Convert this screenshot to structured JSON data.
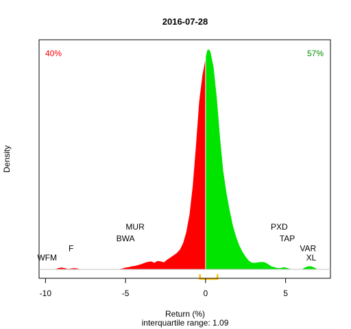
{
  "chart_data": {
    "type": "area",
    "title": "2016-07-28",
    "xlabel": "Return (%)",
    "ylabel": "Density",
    "subtitle": "interquartile range: 1.09",
    "xlim": [
      -10.4,
      7.8
    ],
    "ylim": [
      0,
      1.0
    ],
    "x_ticks": [
      -10,
      -5,
      0,
      5
    ],
    "x_tick_labels": [
      "-10",
      "-5",
      "0",
      "5"
    ],
    "negative_share": "40%",
    "positive_share": "57%",
    "colors": {
      "negative": "#ff0000",
      "positive": "#00e400",
      "iqr": "#ffc000",
      "baseline": "#c0c0c0"
    },
    "iqr": [
      -0.35,
      0.74
    ],
    "density": [
      [
        -9.4,
        0
      ],
      [
        -9.2,
        0.006
      ],
      [
        -9.0,
        0.008
      ],
      [
        -8.8,
        0.006
      ],
      [
        -8.6,
        0.002
      ],
      [
        -8.4,
        0.004
      ],
      [
        -8.2,
        0.006
      ],
      [
        -8.0,
        0.004
      ],
      [
        -7.8,
        0
      ],
      [
        -5.5,
        0
      ],
      [
        -5.2,
        0.004
      ],
      [
        -5.0,
        0.008
      ],
      [
        -4.8,
        0.01
      ],
      [
        -4.6,
        0.014
      ],
      [
        -4.4,
        0.016
      ],
      [
        -4.2,
        0.02
      ],
      [
        -4.0,
        0.024
      ],
      [
        -3.8,
        0.03
      ],
      [
        -3.6,
        0.034
      ],
      [
        -3.4,
        0.036
      ],
      [
        -3.2,
        0.03
      ],
      [
        -3.0,
        0.038
      ],
      [
        -2.8,
        0.036
      ],
      [
        -2.6,
        0.032
      ],
      [
        -2.4,
        0.044
      ],
      [
        -2.2,
        0.054
      ],
      [
        -2.0,
        0.064
      ],
      [
        -1.8,
        0.074
      ],
      [
        -1.6,
        0.09
      ],
      [
        -1.4,
        0.12
      ],
      [
        -1.2,
        0.17
      ],
      [
        -1.0,
        0.25
      ],
      [
        -0.8,
        0.38
      ],
      [
        -0.6,
        0.56
      ],
      [
        -0.4,
        0.76
      ],
      [
        -0.2,
        0.88
      ],
      [
        0.0,
        0.96
      ],
      [
        0.1,
        0.995
      ],
      [
        0.2,
        1.0
      ],
      [
        0.3,
        0.99
      ],
      [
        0.5,
        0.92
      ],
      [
        0.7,
        0.78
      ],
      [
        0.9,
        0.6
      ],
      [
        1.1,
        0.45
      ],
      [
        1.3,
        0.35
      ],
      [
        1.5,
        0.27
      ],
      [
        1.7,
        0.2
      ],
      [
        1.9,
        0.15
      ],
      [
        2.1,
        0.11
      ],
      [
        2.3,
        0.08
      ],
      [
        2.5,
        0.058
      ],
      [
        2.7,
        0.04
      ],
      [
        2.9,
        0.03
      ],
      [
        3.1,
        0.03
      ],
      [
        3.3,
        0.032
      ],
      [
        3.5,
        0.034
      ],
      [
        3.7,
        0.032
      ],
      [
        3.9,
        0.024
      ],
      [
        4.1,
        0.014
      ],
      [
        4.3,
        0.01
      ],
      [
        4.5,
        0.006
      ],
      [
        4.7,
        0.006
      ],
      [
        4.9,
        0.01
      ],
      [
        5.1,
        0.006
      ],
      [
        5.3,
        0.002
      ],
      [
        5.6,
        0
      ],
      [
        6.0,
        0
      ],
      [
        6.2,
        0.008
      ],
      [
        6.4,
        0.014
      ],
      [
        6.6,
        0.014
      ],
      [
        6.8,
        0.008
      ],
      [
        7.0,
        0
      ]
    ],
    "annotations": [
      {
        "text": "WFM",
        "x": -9.9,
        "y": 0.04
      },
      {
        "text": "F",
        "x": -8.4,
        "y": 0.082
      },
      {
        "text": "BWA",
        "x": -5.0,
        "y": 0.127
      },
      {
        "text": "MUR",
        "x": -4.4,
        "y": 0.18
      },
      {
        "text": "PXD",
        "x": 4.6,
        "y": 0.18
      },
      {
        "text": "TAP",
        "x": 5.1,
        "y": 0.127
      },
      {
        "text": "VAR",
        "x": 6.4,
        "y": 0.082
      },
      {
        "text": "XL",
        "x": 6.6,
        "y": 0.04
      }
    ]
  }
}
